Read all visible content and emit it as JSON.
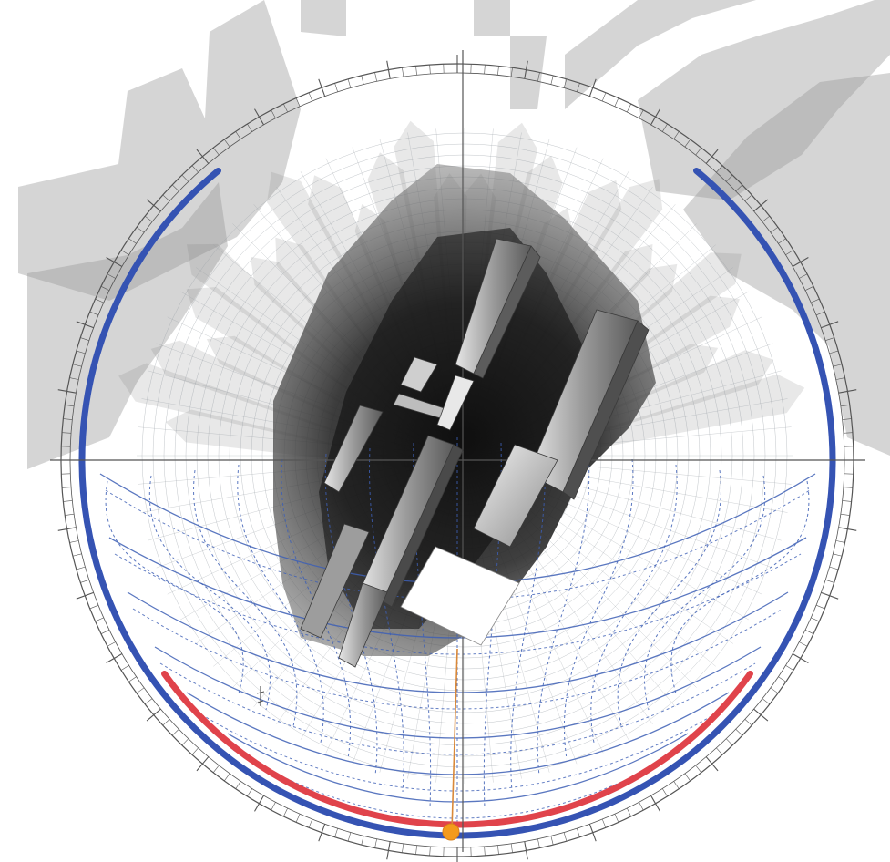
{
  "view": {
    "kind": "stereographic-sun-path-diagram"
  },
  "colors": {
    "background": "#ffffff",
    "compass_ring": "#555555",
    "crosshair": "#555555",
    "sky_grid": "#9aa0a6",
    "sun_path_lines": "#3d5fb5",
    "winter_solstice_arc": "#3553b3",
    "summer_solstice_arc": "#e0434b",
    "meridian_line": "#d9893a",
    "sun_marker": "#f39a1c",
    "shadow_mask": "#3c3c3c",
    "building_light": "#d8d8d8",
    "building_dark": "#4a4a4a"
  },
  "icons": {
    "sun_marker": "sun-position-dot",
    "viewpoint": "observer-figure-icon"
  }
}
